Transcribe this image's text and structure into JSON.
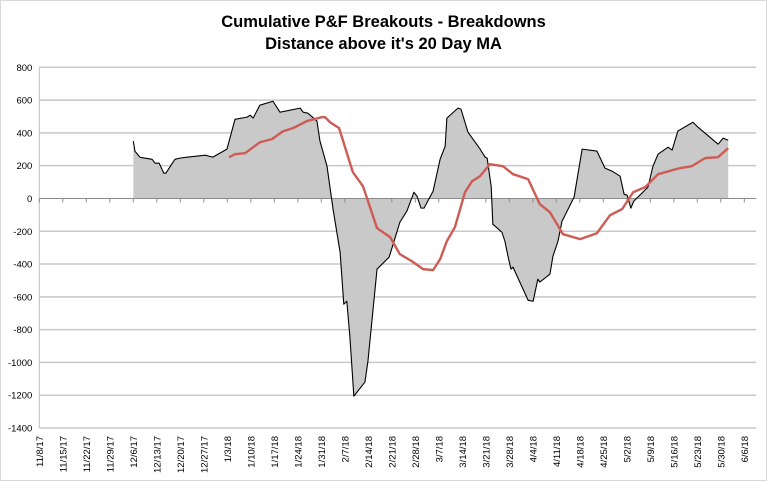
{
  "chart_data": {
    "type": "area",
    "title": "Cumulative P&F Breakouts - Breakdowns",
    "subtitle": "Distance above it's 20 Day MA",
    "xlabel": "",
    "ylabel": "",
    "x_units": "days since 11/8/17",
    "x_range": [
      0,
      210
    ],
    "ylim": [
      -1400,
      800
    ],
    "y_ticks": [
      800,
      600,
      400,
      200,
      0,
      -200,
      -400,
      -600,
      -800,
      -1000,
      -1200,
      -1400
    ],
    "x_tick_labels": [
      "11/8/17",
      "11/15/17",
      "11/22/17",
      "11/29/17",
      "12/6/17",
      "12/13/17",
      "12/20/17",
      "12/27/17",
      "1/3/18",
      "1/10/18",
      "1/17/18",
      "1/24/18",
      "1/31/18",
      "2/7/18",
      "2/14/18",
      "2/21/18",
      "2/28/18",
      "3/7/18",
      "3/14/18",
      "3/21/18",
      "3/28/18",
      "4/4/18",
      "4/11/18",
      "4/18/18",
      "4/25/18",
      "5/2/18",
      "5/9/18",
      "5/16/18",
      "5/23/18",
      "5/30/18",
      "6/6/18"
    ],
    "grid": true,
    "legend": "none",
    "series": [
      {
        "name": "Cumulative P&F Breakouts - Breakdowns",
        "style": "area",
        "color": "#000000",
        "fill": "#c9c9c9",
        "points": [
          [
            28,
            350
          ],
          [
            28.5,
            288
          ],
          [
            30,
            251
          ],
          [
            33.6,
            239
          ],
          [
            34.5,
            215
          ],
          [
            35.7,
            215
          ],
          [
            37.1,
            154
          ],
          [
            37.7,
            154
          ],
          [
            40.4,
            239
          ],
          [
            41.9,
            246
          ],
          [
            44,
            252
          ],
          [
            49.4,
            264
          ],
          [
            51.7,
            252
          ],
          [
            55.9,
            301
          ],
          [
            58.3,
            483
          ],
          [
            61.9,
            496
          ],
          [
            62.8,
            508
          ],
          [
            63.7,
            490
          ],
          [
            65.7,
            569
          ],
          [
            69.6,
            593
          ],
          [
            71.7,
            526
          ],
          [
            77.7,
            551
          ],
          [
            78.6,
            526
          ],
          [
            80,
            520
          ],
          [
            82.7,
            472
          ],
          [
            83.6,
            350
          ],
          [
            85.7,
            197
          ],
          [
            87.5,
            -65
          ],
          [
            89.6,
            -328
          ],
          [
            90.7,
            -645
          ],
          [
            91.6,
            -627
          ],
          [
            92.5,
            -840
          ],
          [
            93.7,
            -1206
          ],
          [
            97,
            -1120
          ],
          [
            97.9,
            -992
          ],
          [
            100.6,
            -431
          ],
          [
            104.2,
            -358
          ],
          [
            105.4,
            -279
          ],
          [
            107.4,
            -145
          ],
          [
            109.5,
            -77
          ],
          [
            111.6,
            38
          ],
          [
            112.5,
            14
          ],
          [
            113.7,
            -59
          ],
          [
            114.6,
            -59
          ],
          [
            117.3,
            45
          ],
          [
            119.4,
            240
          ],
          [
            120.9,
            319
          ],
          [
            121.4,
            490
          ],
          [
            124.7,
            551
          ],
          [
            125.6,
            545
          ],
          [
            127.7,
            404
          ],
          [
            131.3,
            301
          ],
          [
            132.8,
            252
          ],
          [
            133.4,
            246
          ],
          [
            134.6,
            75
          ],
          [
            135.1,
            -157
          ],
          [
            137.8,
            -206
          ],
          [
            138.7,
            -261
          ],
          [
            139.6,
            -352
          ],
          [
            140.5,
            -431
          ],
          [
            141.1,
            -419
          ],
          [
            145.6,
            -621
          ],
          [
            147.1,
            -627
          ],
          [
            148.5,
            -492
          ],
          [
            149.1,
            -510
          ],
          [
            152.1,
            -462
          ],
          [
            153,
            -352
          ],
          [
            154.5,
            -261
          ],
          [
            155.7,
            -139
          ],
          [
            157.2,
            -78
          ],
          [
            159.3,
            8
          ],
          [
            161.7,
            301
          ],
          [
            166.1,
            289
          ],
          [
            168.5,
            185
          ],
          [
            170.6,
            167
          ],
          [
            173,
            136
          ],
          [
            174.2,
            26
          ],
          [
            175.1,
            20
          ],
          [
            176.2,
            -59
          ],
          [
            177.1,
            -16
          ],
          [
            181,
            63
          ],
          [
            181.3,
            69
          ],
          [
            182.8,
            197
          ],
          [
            184.3,
            270
          ],
          [
            187.3,
            313
          ],
          [
            188.5,
            295
          ],
          [
            190.2,
            411
          ],
          [
            194.7,
            465
          ],
          [
            196.2,
            435
          ],
          [
            202.2,
            331
          ],
          [
            203.7,
            368
          ],
          [
            205.2,
            355
          ]
        ]
      },
      {
        "name": "20 Day MA",
        "style": "line",
        "color": "#cd5c55",
        "points": [
          [
            56.5,
            252
          ],
          [
            58.3,
            270
          ],
          [
            61.3,
            276
          ],
          [
            65.7,
            343
          ],
          [
            69.3,
            362
          ],
          [
            72.6,
            410
          ],
          [
            75.6,
            429
          ],
          [
            79.7,
            472
          ],
          [
            84.2,
            496
          ],
          [
            85.1,
            496
          ],
          [
            86.6,
            465
          ],
          [
            89.3,
            429
          ],
          [
            93.4,
            160
          ],
          [
            96.4,
            75
          ],
          [
            100.6,
            -181
          ],
          [
            104.5,
            -236
          ],
          [
            107.4,
            -340
          ],
          [
            111,
            -383
          ],
          [
            114.3,
            -431
          ],
          [
            117.3,
            -437
          ],
          [
            119.4,
            -370
          ],
          [
            121.4,
            -260
          ],
          [
            123.8,
            -175
          ],
          [
            126.8,
            38
          ],
          [
            128.9,
            105
          ],
          [
            131.3,
            136
          ],
          [
            134.2,
            209
          ],
          [
            138.1,
            197
          ],
          [
            141.1,
            148
          ],
          [
            145.6,
            118
          ],
          [
            149.1,
            -35
          ],
          [
            152.1,
            -84
          ],
          [
            156,
            -218
          ],
          [
            161.1,
            -248
          ],
          [
            166.1,
            -212
          ],
          [
            170,
            -102
          ],
          [
            173.6,
            -65
          ],
          [
            176.9,
            38
          ],
          [
            180.5,
            69
          ],
          [
            184.3,
            148
          ],
          [
            190.8,
            185
          ],
          [
            194.4,
            197
          ],
          [
            198.3,
            246
          ],
          [
            202.2,
            252
          ],
          [
            205.2,
            307
          ]
        ]
      }
    ]
  }
}
